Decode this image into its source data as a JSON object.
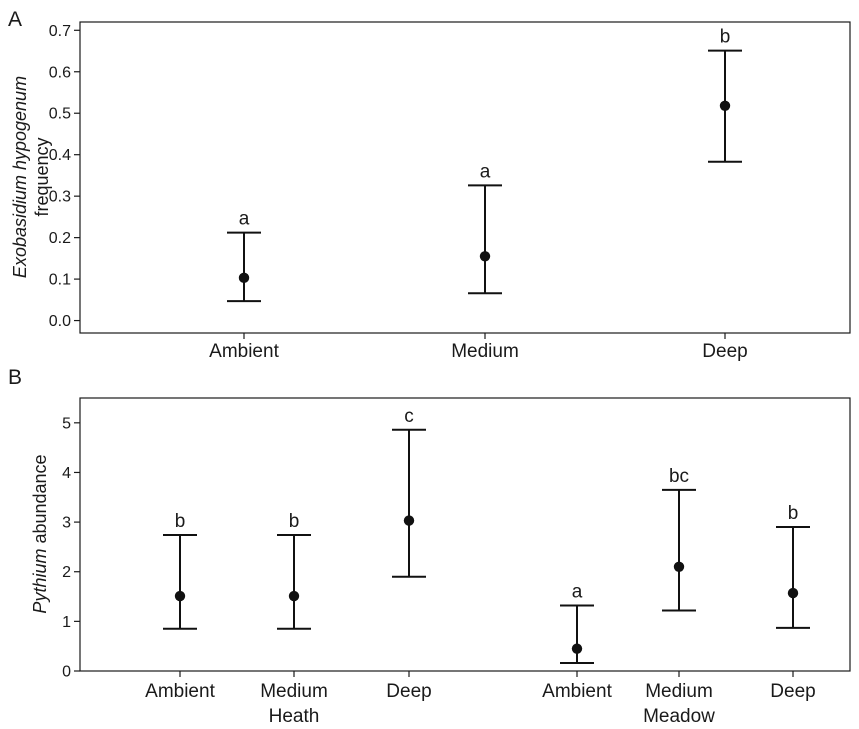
{
  "chart_data": [
    {
      "panel": "A",
      "type": "scatter",
      "ylabel_italic": "Exobasidium hypogenum",
      "ylabel_rest": "frequency",
      "categories": [
        "Ambient",
        "Medium",
        "Deep"
      ],
      "values": [
        0.103,
        0.155,
        0.518
      ],
      "lower": [
        0.047,
        0.066,
        0.383
      ],
      "upper": [
        0.212,
        0.326,
        0.651
      ],
      "letters": [
        "a",
        "a",
        "b"
      ],
      "ylim": [
        -0.03,
        0.72
      ],
      "yticks": [
        "0.0",
        "0.1",
        "0.2",
        "0.3",
        "0.4",
        "0.5",
        "0.6",
        "0.7"
      ],
      "grid": false
    },
    {
      "panel": "B",
      "type": "scatter",
      "ylabel_italic": "Pythium",
      "ylabel_rest": " abundance",
      "groups": [
        "Heath",
        "Meadow"
      ],
      "categories": [
        "Ambient",
        "Medium",
        "Deep",
        "Ambient",
        "Medium",
        "Deep"
      ],
      "values": [
        1.51,
        1.51,
        3.03,
        0.45,
        2.1,
        1.57
      ],
      "lower": [
        0.85,
        0.85,
        1.9,
        0.16,
        1.22,
        0.87
      ],
      "upper": [
        2.74,
        2.74,
        4.86,
        1.32,
        3.65,
        2.9
      ],
      "letters": [
        "b",
        "b",
        "c",
        "a",
        "bc",
        "b"
      ],
      "ylim": [
        0,
        5.5
      ],
      "yticks": [
        "0",
        "1",
        "2",
        "3",
        "4",
        "5"
      ],
      "grid": false
    }
  ]
}
